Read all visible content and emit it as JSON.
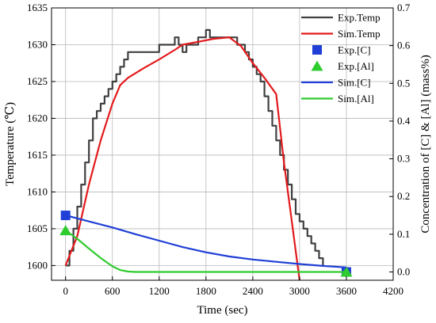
{
  "chart_data": {
    "type": "line",
    "title": "",
    "xlabel": "Time (sec)",
    "ylabel_left": "Temperature (℃)",
    "ylabel_right": "Concentration of [C] & [Al] (mass%)",
    "xlim": [
      -180,
      4200
    ],
    "ylim_left": [
      1598,
      1635
    ],
    "ylim_right": [
      -0.022,
      0.7
    ],
    "xticks": [
      0,
      600,
      1200,
      1800,
      2400,
      3000,
      3600,
      4200
    ],
    "yticks_left": [
      1600,
      1605,
      1610,
      1615,
      1620,
      1625,
      1630,
      1635
    ],
    "yticks_right": [
      0.0,
      0.1,
      0.2,
      0.3,
      0.4,
      0.5,
      0.6,
      0.7
    ],
    "ytick_labels_right": [
      "0.0",
      "0.1",
      "0.2",
      "0.3",
      "0.4",
      "0.5",
      "0.6",
      "0.7"
    ],
    "grid": true,
    "legend_position": "top-right",
    "series": [
      {
        "name": "Exp.Temp",
        "axis": "left",
        "kind": "step-line",
        "color": "#404040",
        "x": [
          0,
          50,
          100,
          150,
          200,
          250,
          300,
          350,
          400,
          450,
          500,
          550,
          600,
          650,
          700,
          750,
          800,
          1000,
          1200,
          1400,
          1450,
          1500,
          1550,
          1600,
          1700,
          1800,
          1850,
          1900,
          2000,
          2100,
          2200,
          2300,
          2350,
          2400,
          2450,
          2500,
          2550,
          2600,
          2650,
          2700,
          2750,
          2800,
          2850,
          2900,
          2950,
          3000,
          3050,
          3100,
          3150,
          3200,
          3250,
          3300
        ],
        "y": [
          1600,
          1602,
          1605,
          1608,
          1611,
          1614,
          1617,
          1620,
          1621,
          1622,
          1623,
          1624,
          1625,
          1626,
          1627,
          1628,
          1629,
          1629,
          1630,
          1631,
          1630,
          1629,
          1630,
          1630,
          1631,
          1632,
          1631,
          1631,
          1631,
          1631,
          1630,
          1629,
          1628,
          1627,
          1626,
          1625,
          1623,
          1621,
          1619,
          1617,
          1615,
          1613,
          1611,
          1609,
          1607,
          1606,
          1605,
          1604,
          1603,
          1602,
          1601,
          1600
        ]
      },
      {
        "name": "Sim.Temp",
        "axis": "left",
        "kind": "line",
        "color": "#e31a1c",
        "x": [
          0,
          150,
          300,
          450,
          600,
          700,
          800,
          1000,
          1200,
          1400,
          1500,
          1700,
          1900,
          2100,
          2250,
          2400,
          2550,
          2700,
          2800,
          2900,
          3000
        ],
        "y": [
          1600,
          1604,
          1611,
          1617,
          1622,
          1624.5,
          1625.5,
          1626.8,
          1628,
          1629.3,
          1630,
          1630.4,
          1630.8,
          1631,
          1629.8,
          1627.5,
          1625.5,
          1623.3,
          1614,
          1606,
          1598
        ]
      },
      {
        "name": "Exp.[C]",
        "axis": "right",
        "kind": "marker",
        "marker": "square",
        "color": "#1f3fd6",
        "x": [
          0,
          3600
        ],
        "y": [
          0.15,
          0.0
        ]
      },
      {
        "name": "Exp.[Al]",
        "axis": "right",
        "kind": "marker",
        "marker": "triangle",
        "color": "#2ecc2e",
        "x": [
          0,
          3600
        ],
        "y": [
          0.11,
          0.0
        ]
      },
      {
        "name": "Sim.[C]",
        "axis": "right",
        "kind": "line",
        "color": "#1f3fd6",
        "x": [
          0,
          300,
          600,
          900,
          1200,
          1500,
          1800,
          2100,
          2400,
          2700,
          3000,
          3300,
          3600
        ],
        "y": [
          0.15,
          0.134,
          0.118,
          0.1,
          0.083,
          0.066,
          0.052,
          0.041,
          0.033,
          0.027,
          0.021,
          0.016,
          0.012
        ]
      },
      {
        "name": "Sim.[Al]",
        "axis": "right",
        "kind": "line",
        "color": "#2ecc2e",
        "x": [
          0,
          150,
          300,
          450,
          600,
          700,
          800,
          900,
          1200,
          1800,
          2400,
          3000,
          3600
        ],
        "y": [
          0.11,
          0.088,
          0.062,
          0.037,
          0.015,
          0.005,
          0.001,
          0.0,
          0.0,
          0.0,
          0.0,
          0.0,
          0.0
        ]
      }
    ]
  }
}
